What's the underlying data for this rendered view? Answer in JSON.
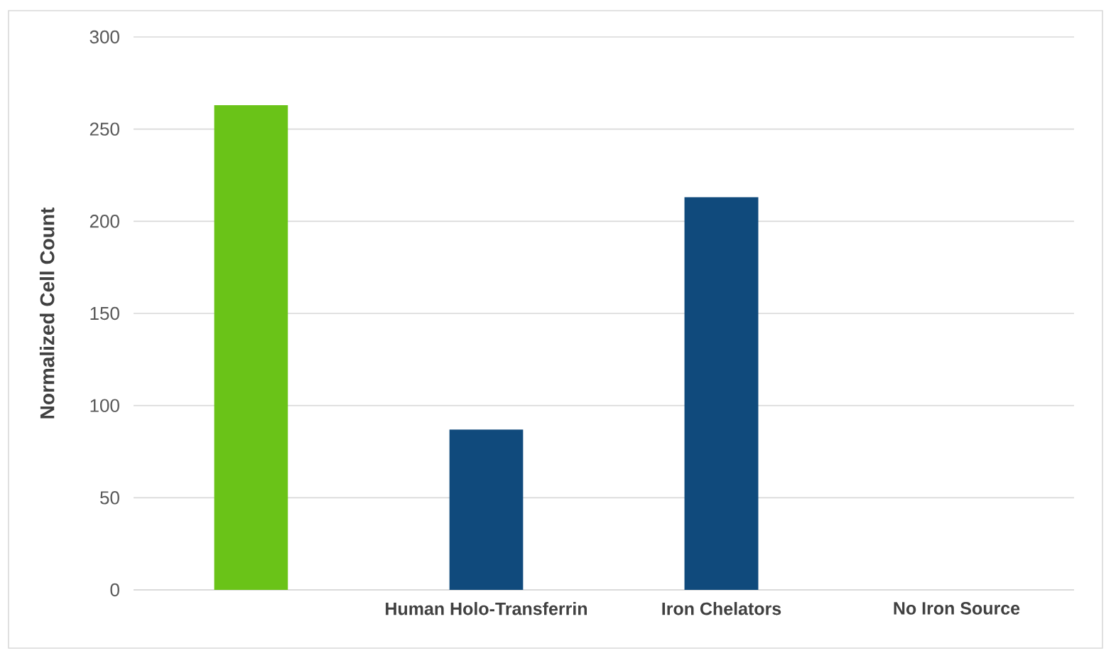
{
  "chart_data": {
    "type": "bar",
    "ylabel": "Normalized Cell Count",
    "categories": [
      null,
      "Human Holo-Transferrin",
      "Iron Chelators",
      "No Iron Source"
    ],
    "values": [
      263,
      87,
      213,
      0
    ],
    "colors": [
      "#6ac318",
      "#104a7c",
      "#104a7c",
      "#104a7c"
    ],
    "ylim": [
      0,
      300
    ],
    "yticks": [
      0,
      50,
      100,
      150,
      200,
      250,
      300
    ],
    "grid": "y"
  }
}
